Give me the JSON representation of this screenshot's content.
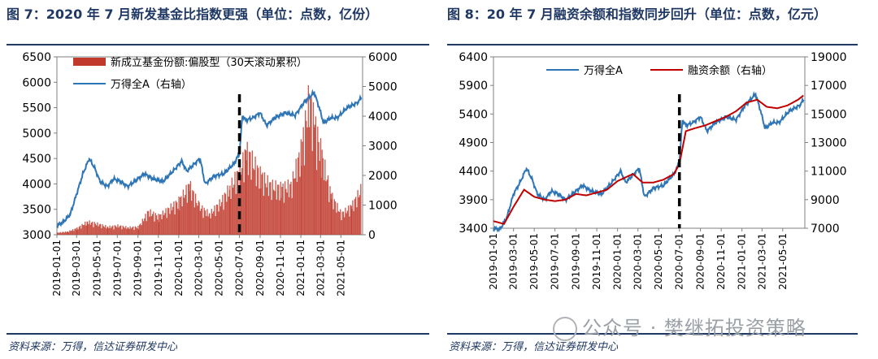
{
  "figures": {
    "fig7_title": "图 7：2020 年 7 月新发基金比指数更强（单位：点数，亿份）",
    "fig8_title": "图 8：20 年 7 月融资余额和指数同步回升（单位：点数，亿元）",
    "source_left": "资料来源：万得，信达证券研发中心",
    "source_right": "资料来源：万得，信达证券研发中心",
    "watermark": "公众号 · 樊继拓投资策略"
  },
  "chart_data": [
    {
      "type": "bar",
      "title": "图 7：2020 年 7 月新发基金比指数更强（单位：点数，亿份）",
      "x_ticks": [
        "2019-01-01",
        "2019-03-01",
        "2019-05-01",
        "2019-07-01",
        "2019-09-01",
        "2019-11-01",
        "2020-01-01",
        "2020-03-01",
        "2020-05-01",
        "2020-07-01",
        "2020-09-01",
        "2020-11-01",
        "2021-01-01",
        "2021-03-01",
        "2021-05-01"
      ],
      "y_left_ticks": [
        "3000",
        "3500",
        "4000",
        "4500",
        "5000",
        "5500",
        "6000",
        "6500"
      ],
      "y_left_lim": [
        3000,
        6500
      ],
      "y_right_ticks": [
        "0",
        "1000",
        "2000",
        "3000",
        "4000",
        "5000",
        "6000"
      ],
      "y_right_lim": [
        0,
        6000
      ],
      "x_range": [
        "2019-01-01",
        "2021-07-05"
      ],
      "event_marker_date": "2020-07-01",
      "series": [
        {
          "name": "新成立基金份额:偏股型（30天滚动累积）",
          "kind": "bar",
          "axis": "right",
          "color": "#c0392b",
          "points": [
            [
              "2019-01-01",
              80
            ],
            [
              "2019-02-01",
              120
            ],
            [
              "2019-03-01",
              250
            ],
            [
              "2019-04-01",
              500
            ],
            [
              "2019-05-01",
              420
            ],
            [
              "2019-06-01",
              300
            ],
            [
              "2019-07-01",
              350
            ],
            [
              "2019-08-01",
              280
            ],
            [
              "2019-09-01",
              300
            ],
            [
              "2019-10-01",
              900
            ],
            [
              "2019-11-01",
              700
            ],
            [
              "2019-12-01",
              1000
            ],
            [
              "2020-01-01",
              1300
            ],
            [
              "2020-02-01",
              1900
            ],
            [
              "2020-03-01",
              1100
            ],
            [
              "2020-04-01",
              800
            ],
            [
              "2020-05-01",
              1200
            ],
            [
              "2020-06-01",
              1800
            ],
            [
              "2020-07-01",
              2500
            ],
            [
              "2020-07-20",
              3200
            ],
            [
              "2020-08-01",
              3000
            ],
            [
              "2020-09-01",
              2300
            ],
            [
              "2020-10-01",
              1900
            ],
            [
              "2020-11-01",
              1800
            ],
            [
              "2020-12-01",
              1900
            ],
            [
              "2021-01-01",
              3300
            ],
            [
              "2021-01-25",
              5300
            ],
            [
              "2021-02-10",
              4300
            ],
            [
              "2021-03-01",
              3200
            ],
            [
              "2021-04-01",
              1500
            ],
            [
              "2021-05-01",
              800
            ],
            [
              "2021-06-01",
              1100
            ],
            [
              "2021-07-01",
              1800
            ]
          ]
        },
        {
          "name": "万得全A（右轴）",
          "kind": "line",
          "axis": "left",
          "color": "#2e75b6",
          "points": [
            [
              "2019-01-01",
              3180
            ],
            [
              "2019-01-20",
              3250
            ],
            [
              "2019-02-10",
              3400
            ],
            [
              "2019-03-01",
              3800
            ],
            [
              "2019-03-20",
              4200
            ],
            [
              "2019-04-08",
              4500
            ],
            [
              "2019-04-25",
              4300
            ],
            [
              "2019-05-10",
              4050
            ],
            [
              "2019-06-01",
              3950
            ],
            [
              "2019-06-20",
              4100
            ],
            [
              "2019-07-10",
              4050
            ],
            [
              "2019-08-01",
              3950
            ],
            [
              "2019-09-01",
              4100
            ],
            [
              "2019-09-20",
              4200
            ],
            [
              "2019-10-15",
              4100
            ],
            [
              "2019-11-15",
              4050
            ],
            [
              "2019-12-15",
              4250
            ],
            [
              "2020-01-10",
              4450
            ],
            [
              "2020-01-25",
              4250
            ],
            [
              "2020-02-10",
              4350
            ],
            [
              "2020-03-05",
              4500
            ],
            [
              "2020-03-20",
              4000
            ],
            [
              "2020-04-15",
              4150
            ],
            [
              "2020-05-15",
              4200
            ],
            [
              "2020-06-15",
              4400
            ],
            [
              "2020-07-01",
              4600
            ],
            [
              "2020-07-10",
              5350
            ],
            [
              "2020-07-20",
              5250
            ],
            [
              "2020-08-10",
              5300
            ],
            [
              "2020-09-01",
              5400
            ],
            [
              "2020-09-20",
              5150
            ],
            [
              "2020-10-15",
              5300
            ],
            [
              "2020-11-15",
              5400
            ],
            [
              "2020-12-15",
              5350
            ],
            [
              "2021-01-10",
              5600
            ],
            [
              "2021-02-10",
              5800
            ],
            [
              "2021-02-25",
              5500
            ],
            [
              "2021-03-10",
              5200
            ],
            [
              "2021-04-01",
              5300
            ],
            [
              "2021-04-20",
              5300
            ],
            [
              "2021-05-20",
              5500
            ],
            [
              "2021-06-20",
              5600
            ],
            [
              "2021-07-01",
              5700
            ]
          ]
        }
      ],
      "grid": false,
      "legend_position": "top-left"
    },
    {
      "type": "line",
      "title": "图 8：20 年 7 月融资余额和指数同步回升（单位：点数，亿元）",
      "x_ticks": [
        "2019-01-01",
        "2019-03-01",
        "2019-05-01",
        "2019-07-01",
        "2019-09-01",
        "2019-11-01",
        "2020-01-01",
        "2020-03-01",
        "2020-05-01",
        "2020-07-01",
        "2020-09-01",
        "2020-11-01",
        "2021-01-01",
        "2021-03-01",
        "2021-05-01"
      ],
      "y_left_ticks": [
        "3400",
        "3900",
        "4400",
        "4900",
        "5400",
        "5900",
        "6400"
      ],
      "y_left_lim": [
        3400,
        6400
      ],
      "y_right_ticks": [
        "7000",
        "9000",
        "11000",
        "13000",
        "15000",
        "17000",
        "19000"
      ],
      "y_right_lim": [
        7000,
        19000
      ],
      "x_range": [
        "2019-01-01",
        "2021-07-05"
      ],
      "event_marker_date": "2020-07-01",
      "series": [
        {
          "name": "万得全A",
          "kind": "line",
          "axis": "left",
          "color": "#2e75b6",
          "points": [
            [
              "2019-01-01",
              3400
            ],
            [
              "2019-01-20",
              3380
            ],
            [
              "2019-02-10",
              3600
            ],
            [
              "2019-03-01",
              4000
            ],
            [
              "2019-03-20",
              4200
            ],
            [
              "2019-04-08",
              4450
            ],
            [
              "2019-04-25",
              4250
            ],
            [
              "2019-05-10",
              4000
            ],
            [
              "2019-06-01",
              3900
            ],
            [
              "2019-06-20",
              4050
            ],
            [
              "2019-07-10",
              4000
            ],
            [
              "2019-08-01",
              3900
            ],
            [
              "2019-09-01",
              4050
            ],
            [
              "2019-09-20",
              4150
            ],
            [
              "2019-10-15",
              4050
            ],
            [
              "2019-11-15",
              4000
            ],
            [
              "2019-12-15",
              4200
            ],
            [
              "2020-01-10",
              4400
            ],
            [
              "2020-01-25",
              4200
            ],
            [
              "2020-02-10",
              4300
            ],
            [
              "2020-03-05",
              4450
            ],
            [
              "2020-03-20",
              3950
            ],
            [
              "2020-04-15",
              4100
            ],
            [
              "2020-05-15",
              4150
            ],
            [
              "2020-06-15",
              4350
            ],
            [
              "2020-07-01",
              4550
            ],
            [
              "2020-07-10",
              5300
            ],
            [
              "2020-07-20",
              5200
            ],
            [
              "2020-08-10",
              5250
            ],
            [
              "2020-09-01",
              5350
            ],
            [
              "2020-09-20",
              5100
            ],
            [
              "2020-10-15",
              5250
            ],
            [
              "2020-11-15",
              5350
            ],
            [
              "2020-12-15",
              5300
            ],
            [
              "2021-01-10",
              5550
            ],
            [
              "2021-02-10",
              5750
            ],
            [
              "2021-02-25",
              5450
            ],
            [
              "2021-03-10",
              5150
            ],
            [
              "2021-04-01",
              5250
            ],
            [
              "2021-04-20",
              5250
            ],
            [
              "2021-05-20",
              5450
            ],
            [
              "2021-06-20",
              5550
            ],
            [
              "2021-07-01",
              5650
            ]
          ]
        },
        {
          "name": "融资余额（右轴）",
          "kind": "line",
          "axis": "right",
          "color": "#c00000",
          "points": [
            [
              "2019-01-01",
              7500
            ],
            [
              "2019-02-01",
              7300
            ],
            [
              "2019-03-01",
              8500
            ],
            [
              "2019-04-01",
              9700
            ],
            [
              "2019-05-01",
              9200
            ],
            [
              "2019-06-01",
              9000
            ],
            [
              "2019-07-01",
              8900
            ],
            [
              "2019-08-01",
              9000
            ],
            [
              "2019-09-01",
              9400
            ],
            [
              "2019-10-01",
              9300
            ],
            [
              "2019-11-01",
              9500
            ],
            [
              "2019-12-01",
              9700
            ],
            [
              "2020-01-01",
              10300
            ],
            [
              "2020-02-15",
              10800
            ],
            [
              "2020-03-15",
              10200
            ],
            [
              "2020-04-15",
              10200
            ],
            [
              "2020-05-15",
              10400
            ],
            [
              "2020-06-15",
              10800
            ],
            [
              "2020-07-01",
              11500
            ],
            [
              "2020-07-20",
              13800
            ],
            [
              "2020-08-15",
              14000
            ],
            [
              "2020-09-15",
              14200
            ],
            [
              "2020-10-15",
              14500
            ],
            [
              "2020-11-15",
              14800
            ],
            [
              "2020-12-15",
              15200
            ],
            [
              "2021-01-15",
              15800
            ],
            [
              "2021-02-15",
              16000
            ],
            [
              "2021-03-15",
              15500
            ],
            [
              "2021-04-15",
              15400
            ],
            [
              "2021-05-15",
              15600
            ],
            [
              "2021-06-15",
              16000
            ],
            [
              "2021-07-01",
              16300
            ]
          ]
        }
      ],
      "grid": false,
      "legend_position": "top"
    }
  ]
}
